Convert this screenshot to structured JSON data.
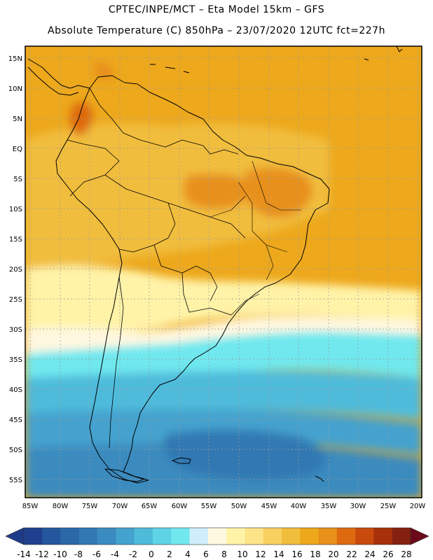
{
  "title_line1": "CPTEC/INPE/MCT –  Eta Model 15km – GFS",
  "title_line2": "Absolute Temperature (C) 850hPa – 23/07/2020 12UTC fct=227h",
  "lat_labels": [
    "15N",
    "10N",
    "5N",
    "EQ",
    "5S",
    "10S",
    "15S",
    "20S",
    "25S",
    "30S",
    "35S",
    "40S",
    "45S",
    "50S",
    "55S"
  ],
  "lon_labels": [
    "85W",
    "80W",
    "75W",
    "70W",
    "65W",
    "60W",
    "55W",
    "50W",
    "45W",
    "40W",
    "35W",
    "30W",
    "25W",
    "20W"
  ],
  "colorbar": {
    "labels": [
      "-14",
      "-12",
      "-10",
      "-8",
      "-6",
      "-4",
      "-2",
      "0",
      "2",
      "4",
      "6",
      "8",
      "10",
      "12",
      "14",
      "16",
      "18",
      "20",
      "22",
      "24",
      "26",
      "28"
    ],
    "colors": [
      "#1f3f8f",
      "#23569c",
      "#2a68a8",
      "#3279b3",
      "#3a8bbf",
      "#44a2ce",
      "#4fbbdb",
      "#5fd3e6",
      "#70e8ee",
      "#cdeefa",
      "#fff8e0",
      "#fff3a8",
      "#fde488",
      "#f8d060",
      "#f1bd3c",
      "#eda81c",
      "#e8901a",
      "#de6a10",
      "#c84a0c",
      "#a8300a",
      "#842010"
    ],
    "under_color": "#1e3a8a",
    "over_color": "#6b0a1a"
  },
  "field_colors": {
    "ocean_north": "#eda81c",
    "land_warm": "#f1bd3c",
    "hot": "#e8901a",
    "hotter": "#de6a10",
    "mild": "#f8d060",
    "cool": "#fff3a8",
    "pale": "#fff8e0",
    "cold1": "#70e8ee",
    "cold2": "#4fbbdb",
    "cold3": "#44a2ce",
    "cold4": "#3a8bbf",
    "cold5": "#3279b3"
  }
}
